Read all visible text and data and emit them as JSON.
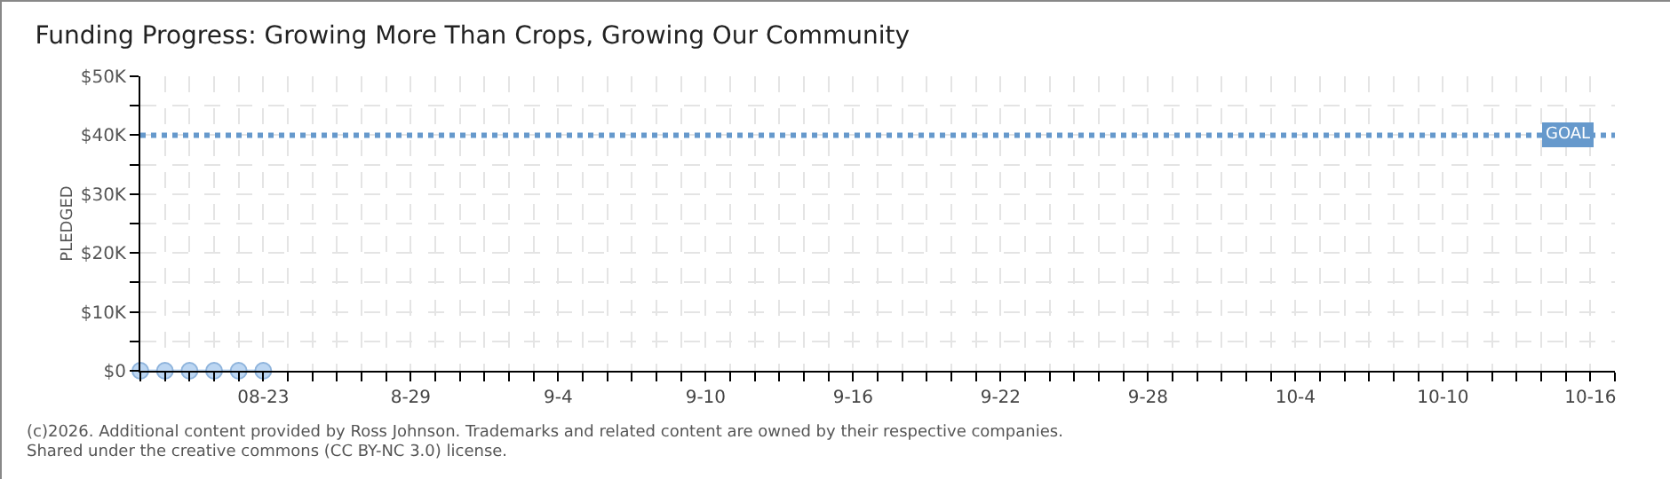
{
  "chart_data": {
    "type": "line",
    "title": "Funding Progress: Growing More Than Crops, Growing Our Community",
    "ylabel": "PLEDGED",
    "x": [
      "--08-18",
      "--08-19",
      "--08-20",
      "--08-21",
      "--08-22",
      "--08-23"
    ],
    "series": [
      {
        "color": "#bcd6f2",
        "values": [
          0,
          0,
          0,
          0,
          0,
          0
        ]
      }
    ],
    "marker": "circle",
    "grid": true,
    "ylim": [
      0,
      50000
    ],
    "yticks": [
      {
        "value": 0,
        "label": "$0"
      },
      {
        "value": 5000,
        "label": null
      },
      {
        "value": 10000,
        "label": "$10K"
      },
      {
        "value": 15000,
        "label": null
      },
      {
        "value": 20000,
        "label": "$20K"
      },
      {
        "value": 25000,
        "label": null
      },
      {
        "value": 30000,
        "label": "$30K"
      },
      {
        "value": 35000,
        "label": null
      },
      {
        "value": 40000,
        "label": "$40K"
      },
      {
        "value": 45000,
        "label": null
      },
      {
        "value": 50000,
        "label": "$50K"
      }
    ],
    "xlim": [
      "--08-18",
      "--10-17"
    ],
    "xticks": [
      {
        "value": "--08-18",
        "label": null
      },
      {
        "value": "--08-19",
        "label": null
      },
      {
        "value": "--08-20",
        "label": null
      },
      {
        "value": "--08-21",
        "label": null
      },
      {
        "value": "--08-22",
        "label": null
      },
      {
        "value": "--08-23",
        "label": "08-23"
      },
      {
        "value": "--08-24",
        "label": null
      },
      {
        "value": "--08-25",
        "label": null
      },
      {
        "value": "--08-26",
        "label": null
      },
      {
        "value": "--08-27",
        "label": null
      },
      {
        "value": "--08-28",
        "label": null
      },
      {
        "value": "--08-29",
        "label": "8-29"
      },
      {
        "value": "--08-30",
        "label": null
      },
      {
        "value": "--08-31",
        "label": null
      },
      {
        "value": "--09-01",
        "label": null
      },
      {
        "value": "--09-02",
        "label": null
      },
      {
        "value": "--09-03",
        "label": null
      },
      {
        "value": "--09-04",
        "label": "9-4"
      },
      {
        "value": "--09-05",
        "label": null
      },
      {
        "value": "--09-06",
        "label": null
      },
      {
        "value": "--09-07",
        "label": null
      },
      {
        "value": "--09-08",
        "label": null
      },
      {
        "value": "--09-09",
        "label": null
      },
      {
        "value": "--09-10",
        "label": "9-10"
      },
      {
        "value": "--09-11",
        "label": null
      },
      {
        "value": "--09-12",
        "label": null
      },
      {
        "value": "--09-13",
        "label": null
      },
      {
        "value": "--09-14",
        "label": null
      },
      {
        "value": "--09-15",
        "label": null
      },
      {
        "value": "--09-16",
        "label": "9-16"
      },
      {
        "value": "--09-17",
        "label": null
      },
      {
        "value": "--09-18",
        "label": null
      },
      {
        "value": "--09-19",
        "label": null
      },
      {
        "value": "--09-20",
        "label": null
      },
      {
        "value": "--09-21",
        "label": null
      },
      {
        "value": "--09-22",
        "label": "9-22"
      },
      {
        "value": "--09-23",
        "label": null
      },
      {
        "value": "--09-24",
        "label": null
      },
      {
        "value": "--09-25",
        "label": null
      },
      {
        "value": "--09-26",
        "label": null
      },
      {
        "value": "--09-27",
        "label": null
      },
      {
        "value": "--09-28",
        "label": "9-28"
      },
      {
        "value": "--09-29",
        "label": null
      },
      {
        "value": "--09-30",
        "label": null
      },
      {
        "value": "--10-01",
        "label": null
      },
      {
        "value": "--10-02",
        "label": null
      },
      {
        "value": "--10-03",
        "label": null
      },
      {
        "value": "--10-04",
        "label": "10-4"
      },
      {
        "value": "--10-05",
        "label": null
      },
      {
        "value": "--10-06",
        "label": null
      },
      {
        "value": "--10-07",
        "label": null
      },
      {
        "value": "--10-08",
        "label": null
      },
      {
        "value": "--10-09",
        "label": null
      },
      {
        "value": "--10-10",
        "label": "10-10"
      },
      {
        "value": "--10-11",
        "label": null
      },
      {
        "value": "--10-12",
        "label": null
      },
      {
        "value": "--10-13",
        "label": null
      },
      {
        "value": "--10-14",
        "label": null
      },
      {
        "value": "--10-15",
        "label": null
      },
      {
        "value": "--10-16",
        "label": "10-16"
      },
      {
        "value": "--10-17",
        "label": null
      }
    ],
    "ref_lines": [
      {
        "axis": "y",
        "value": 40000,
        "label": "GOAL",
        "color": "#6699cc",
        "line_style": "dotted"
      }
    ],
    "annotations": [
      "(c)2026. Additional content provided by Ross Johnson. Trademarks and related content are owned by their respective companies.",
      "Shared under the creative commons (CC BY-NC 3.0) license."
    ]
  }
}
